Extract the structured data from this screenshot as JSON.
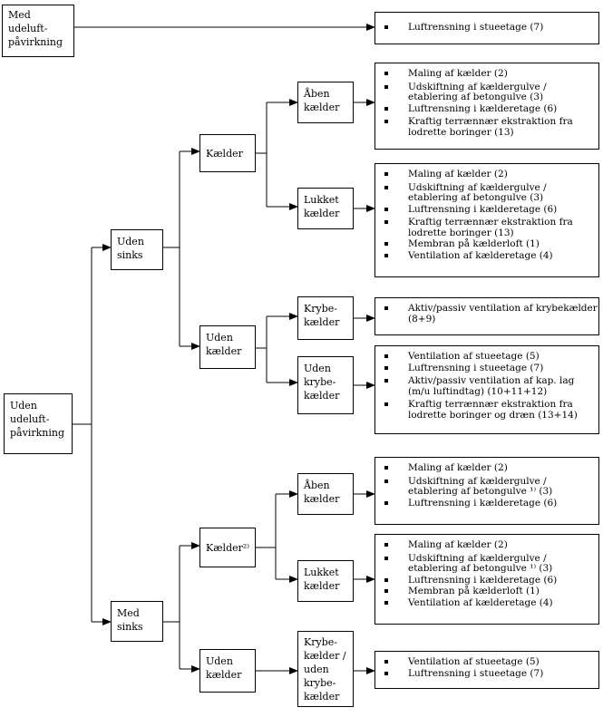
{
  "nodes": {
    "med_udeluft": [
      "Med",
      "udeluft-",
      "påvirkning"
    ],
    "uden_udeluft": [
      "Uden",
      "udeluft-",
      "påvirkning"
    ],
    "uden_sinks": [
      "Uden",
      "sinks"
    ],
    "med_sinks": [
      "Med",
      "sinks"
    ],
    "kaelder_1": [
      "Kælder"
    ],
    "uden_kaelder_1": [
      "Uden",
      "kælder"
    ],
    "aaben_kaelder_1": [
      "Åben",
      "kælder"
    ],
    "lukket_kaelder_1": [
      "Lukket",
      "kælder"
    ],
    "krybe_kaelder": [
      "Krybe-",
      "kælder"
    ],
    "uden_krybe_kaelder": [
      "Uden",
      "krybe-",
      "kælder"
    ],
    "kaelder_2": [
      "Kælder²⁾"
    ],
    "uden_kaelder_2": [
      "Uden",
      "kælder"
    ],
    "aaben_kaelder_2": [
      "Åben",
      "kælder"
    ],
    "lukket_kaelder_2": [
      "Lukket",
      "kælder"
    ],
    "krybe_uden_krybe": [
      "Krybe-",
      "kælder /",
      "uden",
      "krybe-",
      "kælder"
    ]
  },
  "lists": {
    "l0": [
      [
        "Luftrensning i stueetage (7)"
      ]
    ],
    "l1": [
      [
        "Maling af kælder (2)"
      ],
      [
        "Udskiftning af kældergulve /",
        "etablering af betongulve (3)"
      ],
      [
        "Luftrensning i kælderetage (6)"
      ],
      [
        "Kraftig terrænnær ekstraktion fra",
        "lodrette boringer (13)"
      ]
    ],
    "l2": [
      [
        "Maling af kælder (2)"
      ],
      [
        "Udskiftning af kældergulve /",
        "etablering af betongulve (3)"
      ],
      [
        "Luftrensning i kælderetage (6)"
      ],
      [
        "Kraftig terrænnær ekstraktion fra",
        "lodrette boringer (13)"
      ],
      [
        "Membran på kælderloft (1)"
      ],
      [
        "Ventilation af kælderetage (4)"
      ]
    ],
    "l3": [
      [
        "Aktiv/passiv ventilation af krybekælder",
        "(8+9)"
      ]
    ],
    "l4": [
      [
        "Ventilation af stueetage (5)"
      ],
      [
        "Luftrensning i stueetage (7)"
      ],
      [
        "Aktiv/passiv ventilation af kap. lag",
        "(m/u luftindtag) (10+11+12)"
      ],
      [
        "Kraftig terrænnær ekstraktion fra",
        "lodrette boringer og dræn (13+14)"
      ]
    ],
    "l5": [
      [
        "Maling af kælder (2)"
      ],
      [
        "Udskiftning af kældergulve /",
        "etablering af betongulve ¹⁾ (3)"
      ],
      [
        "Luftrensning i kælderetage (6)"
      ]
    ],
    "l6": [
      [
        "Maling af kælder (2)"
      ],
      [
        "Udskiftning af kældergulve /",
        "etablering af betongulve ¹⁾ (3)"
      ],
      [
        "Luftrensning i kælderetage (6)"
      ],
      [
        "Membran på kælderloft (1)"
      ],
      [
        "Ventilation af kælderetage (4)"
      ]
    ],
    "l7": [
      [
        "Ventilation af stueetage (5)"
      ],
      [
        "Luftrensning i stueetage (7)"
      ]
    ]
  }
}
